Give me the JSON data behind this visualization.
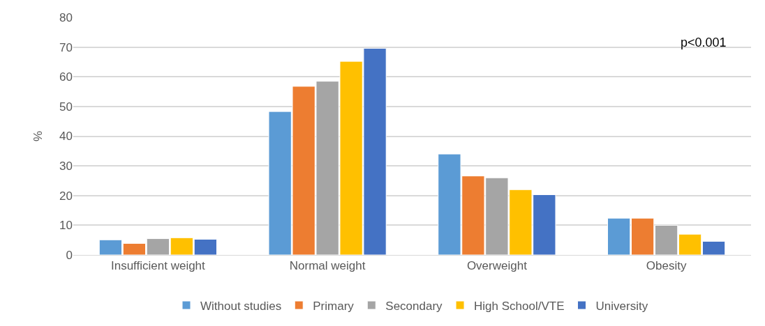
{
  "chart_data": {
    "type": "bar",
    "ylabel": "%",
    "categories": [
      "Insufficient weight",
      "Normal weight",
      "Overweight",
      "Obesity"
    ],
    "series": [
      {
        "name": "Without studies",
        "color": "#5b9bd5",
        "values": [
          5.1,
          48.3,
          34.0,
          12.4
        ]
      },
      {
        "name": "Primary",
        "color": "#ed7d31",
        "values": [
          3.9,
          56.8,
          26.6,
          12.4
        ]
      },
      {
        "name": "Secondary",
        "color": "#a5a5a5",
        "values": [
          5.5,
          58.5,
          26.0,
          10.0
        ]
      },
      {
        "name": "High School/VTE",
        "color": "#ffc000",
        "values": [
          5.8,
          65.2,
          22.0,
          7.0
        ]
      },
      {
        "name": "University",
        "color": "#4472c4",
        "values": [
          5.3,
          69.6,
          20.3,
          4.6
        ]
      }
    ],
    "ylim": [
      0,
      80
    ],
    "yticks": [
      0,
      10,
      20,
      30,
      40,
      50,
      60,
      70,
      80
    ],
    "grid": "y",
    "legend": "bottom",
    "annotations": [
      "p<0.001"
    ]
  }
}
